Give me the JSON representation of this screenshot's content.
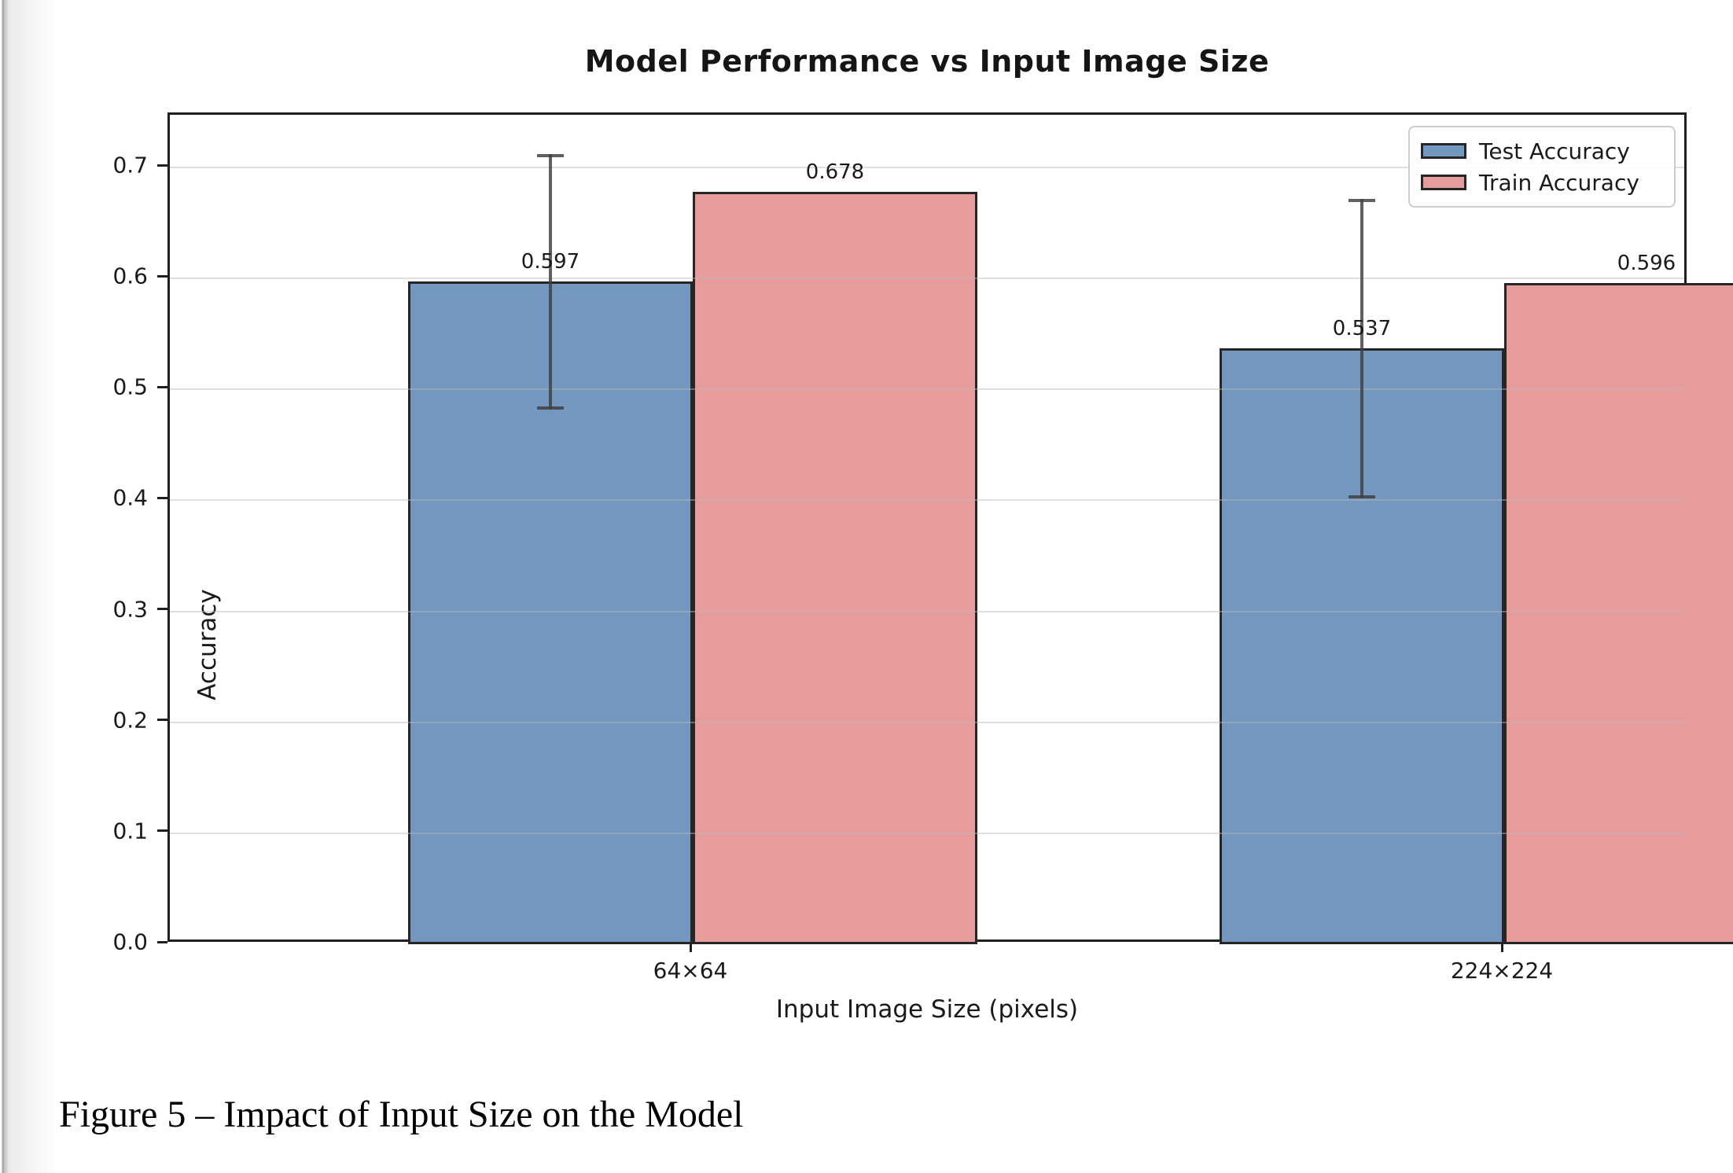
{
  "page": {
    "caption": "Figure 5 – Impact of Input Size on the Model"
  },
  "chart_data": {
    "type": "bar",
    "title": "Model Performance vs Input Image Size",
    "xlabel": "Input Image Size (pixels)",
    "ylabel": "Accuracy",
    "categories": [
      "64×64",
      "224×224"
    ],
    "series": [
      {
        "name": "Test Accuracy",
        "color": "#7397BE",
        "values": [
          0.597,
          0.537
        ],
        "errors": [
          0.115,
          0.135
        ]
      },
      {
        "name": "Train Accuracy",
        "color": "#E79C9C",
        "values": [
          0.678,
          0.596
        ],
        "errors": [
          null,
          null
        ]
      }
    ],
    "value_label_decimals": 3,
    "ylim": [
      0,
      0.7475
    ],
    "yticks": [
      0.0,
      0.1,
      0.2,
      0.3,
      0.4,
      0.5,
      0.6,
      0.7
    ],
    "ytick_labels": [
      "0.0",
      "0.1",
      "0.2",
      "0.3",
      "0.4",
      "0.5",
      "0.6",
      "0.7"
    ],
    "grid": "horizontal",
    "legend_position": "upper right",
    "colors": {
      "bar_edge": "#262626",
      "error_bar": "rgba(62,62,62,0.82)",
      "gridline": "rgba(185,185,185,0.45)",
      "axis": "#1f1f1f",
      "text": "#1a1a1a"
    }
  }
}
